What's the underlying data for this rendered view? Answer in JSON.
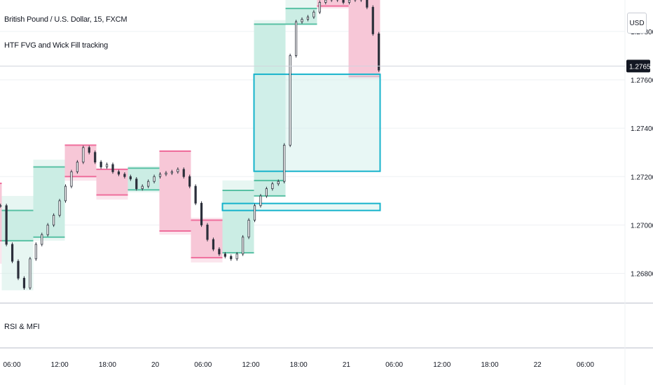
{
  "legend": {
    "symbol": "British Pound / U.S. Dollar, 15, FXCM",
    "indicator": "HTF FVG and Wick Fill tracking"
  },
  "price_axis": {
    "currency": "USD",
    "ticks": [
      "1.27800",
      "1.27600",
      "1.27400",
      "1.27200",
      "1.27000",
      "1.26800"
    ],
    "last_price": "1.27657"
  },
  "time_axis": {
    "ticks": [
      "06:00",
      "12:00",
      "18:00",
      "20",
      "06:00",
      "12:00",
      "18:00",
      "21",
      "06:00",
      "12:00",
      "18:00",
      "22",
      "06:00"
    ]
  },
  "lower_pane": {
    "label": "RSI & MFI"
  },
  "colors": {
    "bull_fill": "#c9ece3",
    "bull_edge": "#58c1a4",
    "bear_fill": "#f7c5d6",
    "bear_edge": "#ef6e9c",
    "fvg_edge": "#16b3cb",
    "fvg_fill": "#d5f1ec",
    "candle": "#2b2f3a",
    "grid": "#eef0f3"
  },
  "chart_data": {
    "type": "candlestick",
    "title": "British Pound / U.S. Dollar, 15, FXCM",
    "ylim": [
      1.2668,
      1.2793
    ],
    "grid": false,
    "htf_boxes": [
      {
        "dir": "bear",
        "t0": 0.0,
        "t1": 0.5,
        "open": 1.27172,
        "close": 1.26935,
        "high": 1.27176,
        "low": 1.2684
      },
      {
        "dir": "bull",
        "t0": 0.5,
        "t1": 5.5,
        "open": 1.26935,
        "close": 1.2706,
        "high": 1.2712,
        "low": 1.2673
      },
      {
        "dir": "bull",
        "t0": 5.5,
        "t1": 10.5,
        "open": 1.2695,
        "close": 1.2724,
        "high": 1.2727,
        "low": 1.26935
      },
      {
        "dir": "bear",
        "t0": 10.5,
        "t1": 15.5,
        "open": 1.2733,
        "close": 1.272,
        "high": 1.27332,
        "low": 1.27183
      },
      {
        "dir": "bear",
        "t0": 15.5,
        "t1": 20.5,
        "open": 1.2723,
        "close": 1.27124,
        "high": 1.2723,
        "low": 1.27105
      },
      {
        "dir": "bull",
        "t0": 20.5,
        "t1": 25.5,
        "open": 1.27145,
        "close": 1.27235,
        "high": 1.27244,
        "low": 1.27135
      },
      {
        "dir": "bear",
        "t0": 25.5,
        "t1": 30.5,
        "open": 1.27305,
        "close": 1.26975,
        "high": 1.2731,
        "low": 1.2696
      },
      {
        "dir": "bear",
        "t0": 30.5,
        "t1": 35.5,
        "open": 1.2702,
        "close": 1.26865,
        "high": 1.2703,
        "low": 1.26845
      },
      {
        "dir": "bull",
        "t0": 35.5,
        "t1": 40.5,
        "open": 1.26885,
        "close": 1.27143,
        "high": 1.27184,
        "low": 1.26882
      },
      {
        "dir": "bull",
        "t0": 40.5,
        "t1": 45.5,
        "open": 1.2712,
        "close": 1.27184,
        "high": 1.2719,
        "low": 1.27118
      },
      {
        "dir": "bull",
        "t0": 40.5,
        "t1": 45.5,
        "open": 1.27184,
        "close": 1.2783,
        "high": 1.27847,
        "low": 1.27184
      },
      {
        "dir": "bull",
        "t0": 45.5,
        "t1": 50.5,
        "open": 1.2783,
        "close": 1.27895,
        "high": 1.27942,
        "low": 1.2783
      },
      {
        "dir": "bear",
        "t0": 50.5,
        "t1": 55.5,
        "open": 1.2795,
        "close": 1.27905,
        "high": 1.2796,
        "low": 1.27895
      },
      {
        "dir": "bear",
        "t0": 55.5,
        "t1": 60.5,
        "open": 1.2796,
        "close": 1.27614,
        "high": 1.27963,
        "low": 1.27604
      }
    ],
    "fvg": [
      {
        "t0": 40.5,
        "t1": 60.5,
        "top": 1.27623,
        "bottom": 1.27222,
        "filled": false
      },
      {
        "t0": 35.5,
        "t1": 60.5,
        "top": 1.27089,
        "bottom": 1.2706,
        "filled": false
      }
    ],
    "close_series": [
      1.2708,
      1.2692,
      1.2685,
      1.2678,
      1.2674,
      1.2686,
      1.2692,
      1.2696,
      1.27,
      1.2704,
      1.271,
      1.2716,
      1.2722,
      1.2726,
      1.2732,
      1.273,
      1.2726,
      1.2724,
      1.2725,
      1.2722,
      1.2721,
      1.272,
      1.2719,
      1.2715,
      1.2716,
      1.2718,
      1.272,
      1.2721,
      1.27215,
      1.2722,
      1.2723,
      1.272,
      1.2716,
      1.2709,
      1.27,
      1.2694,
      1.269,
      1.2688,
      1.2687,
      1.2686,
      1.2688,
      1.2695,
      1.2702,
      1.2708,
      1.2712,
      1.2715,
      1.2717,
      1.2718,
      1.2733,
      1.277,
      1.2784,
      1.2785,
      1.2786,
      1.2788,
      1.2792,
      1.2793,
      1.2794,
      1.2793,
      1.2792,
      1.2793,
      1.2794,
      1.2793,
      1.279,
      1.2779,
      1.2764
    ],
    "last_price": 1.27657
  }
}
